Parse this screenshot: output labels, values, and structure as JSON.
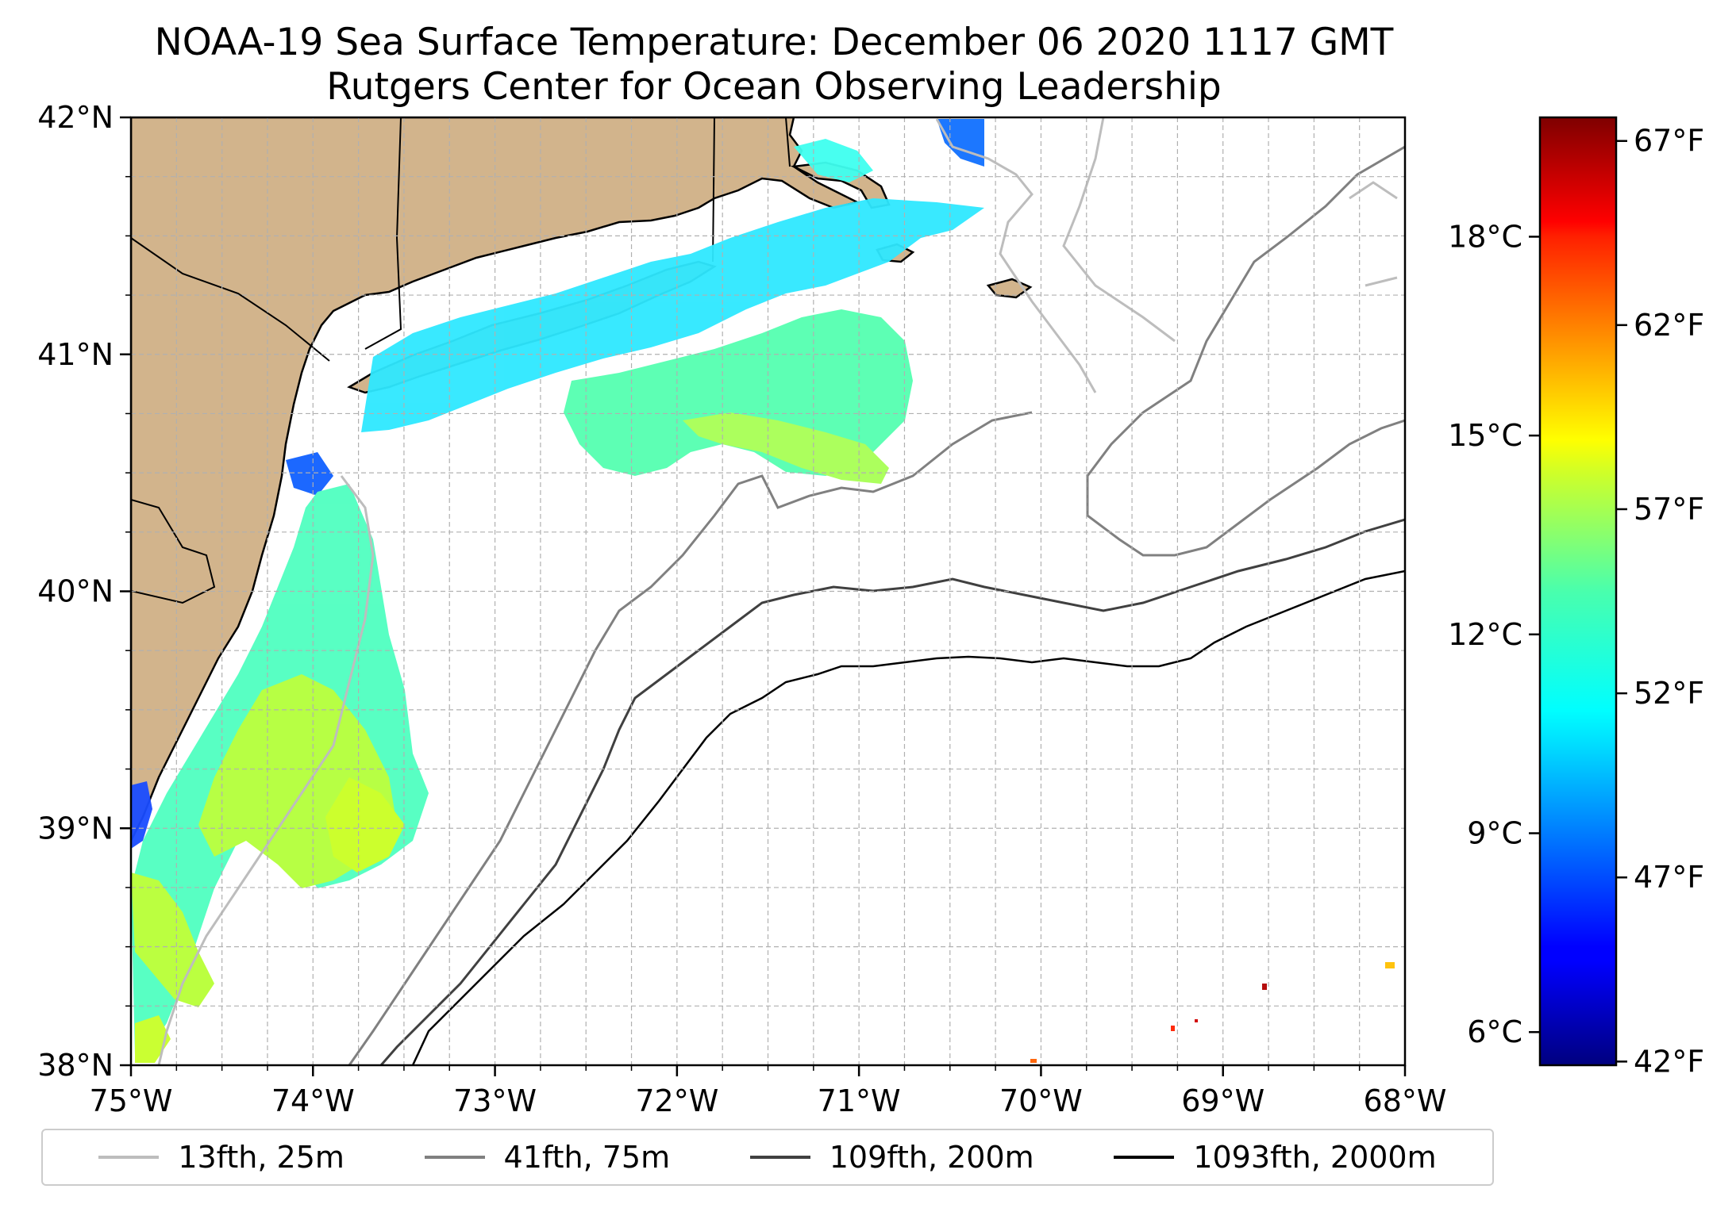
{
  "title": {
    "line1": "NOAA-19 Sea Surface Temperature: December 06 2020 1117 GMT",
    "line2": "Rutgers Center for Ocean Observing Leadership"
  },
  "map": {
    "lon_range": [
      -75,
      -68
    ],
    "lat_range": [
      38,
      42
    ],
    "lon_ticks": [
      "75°W",
      "74°W",
      "73°W",
      "72°W",
      "71°W",
      "70°W",
      "69°W",
      "68°W"
    ],
    "lat_ticks": [
      "38°N",
      "39°N",
      "40°N",
      "41°N",
      "42°N"
    ],
    "grid": "dashed gray every 0.25°",
    "land_color": "#d2b48c",
    "colormap": "jet"
  },
  "colorbar": {
    "range_celsius": [
      5.5,
      19.8
    ],
    "celsius_ticks": [
      "6°C",
      "9°C",
      "12°C",
      "15°C",
      "18°C"
    ],
    "fahrenheit_ticks": [
      "42°F",
      "47°F",
      "52°F",
      "57°F",
      "62°F",
      "67°F"
    ]
  },
  "legend": [
    {
      "label": "13fth, 25m",
      "color": "#bdbdbd",
      "width": 4
    },
    {
      "label": "41fth, 75m",
      "color": "#808080",
      "width": 4
    },
    {
      "label": "109fth, 200m",
      "color": "#404040",
      "width": 4
    },
    {
      "label": "1093fth, 2000m",
      "color": "#000000",
      "width": 4
    }
  ]
}
